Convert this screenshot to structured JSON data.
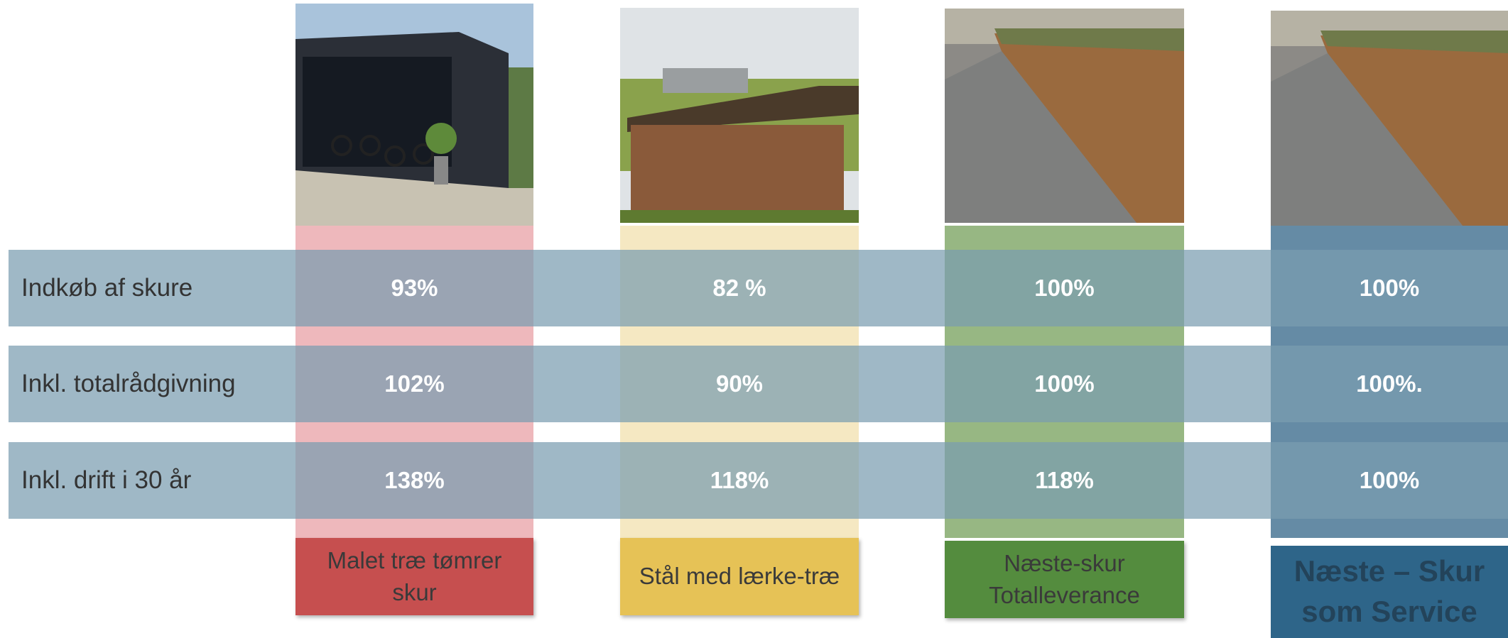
{
  "columns": [
    "Malet træ tømrer skur",
    "Stål med lærke-træ",
    "Næste-skur Totalleverance",
    "Næste – Skur som Service"
  ],
  "rows": [
    {
      "label": "Indkøb af skure",
      "values": [
        "93%",
        "82 %",
        "100%",
        "100%"
      ]
    },
    {
      "label": "Inkl. totalrådgivning",
      "values": [
        "102%",
        "90%",
        "100%",
        "100%."
      ]
    },
    {
      "label": "Inkl. drift i 30 år",
      "values": [
        "138%",
        "118%",
        "118%",
        "100%"
      ]
    }
  ]
}
